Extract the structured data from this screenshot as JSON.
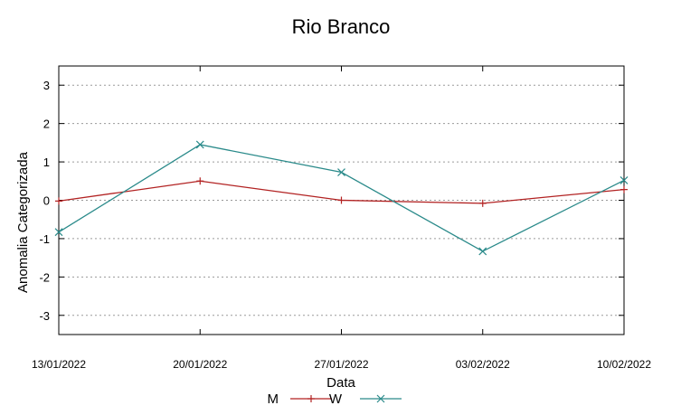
{
  "chart_data": {
    "type": "line",
    "title": "Rio Branco",
    "xlabel": "Data",
    "ylabel": "Anomalia Categorizada",
    "x": [
      "13/01/2022",
      "20/01/2022",
      "27/01/2022",
      "03/02/2022",
      "10/02/2022"
    ],
    "x_tick_labels": [
      "13/01/2022",
      "20/01/2022",
      "27/01/2022",
      "03/02/2022",
      "10/02/2022"
    ],
    "ylim": [
      -3.5,
      3.5
    ],
    "y_ticks": [
      -3,
      -2,
      -1,
      0,
      1,
      2,
      3
    ],
    "y_tick_labels": [
      "-3",
      "-2",
      "-1",
      "0",
      "1",
      "2",
      "3"
    ],
    "grid": "horizontal dotted",
    "legend_position": "bottom",
    "series": [
      {
        "name": "M",
        "values": [
          -0.02,
          0.5,
          0.0,
          -0.08,
          0.28
        ],
        "color": "#b22222",
        "marker": "plus"
      },
      {
        "name": "W",
        "values": [
          -0.83,
          1.45,
          0.73,
          -1.33,
          0.52
        ],
        "color": "#2a8a8a",
        "marker": "cross"
      }
    ]
  }
}
